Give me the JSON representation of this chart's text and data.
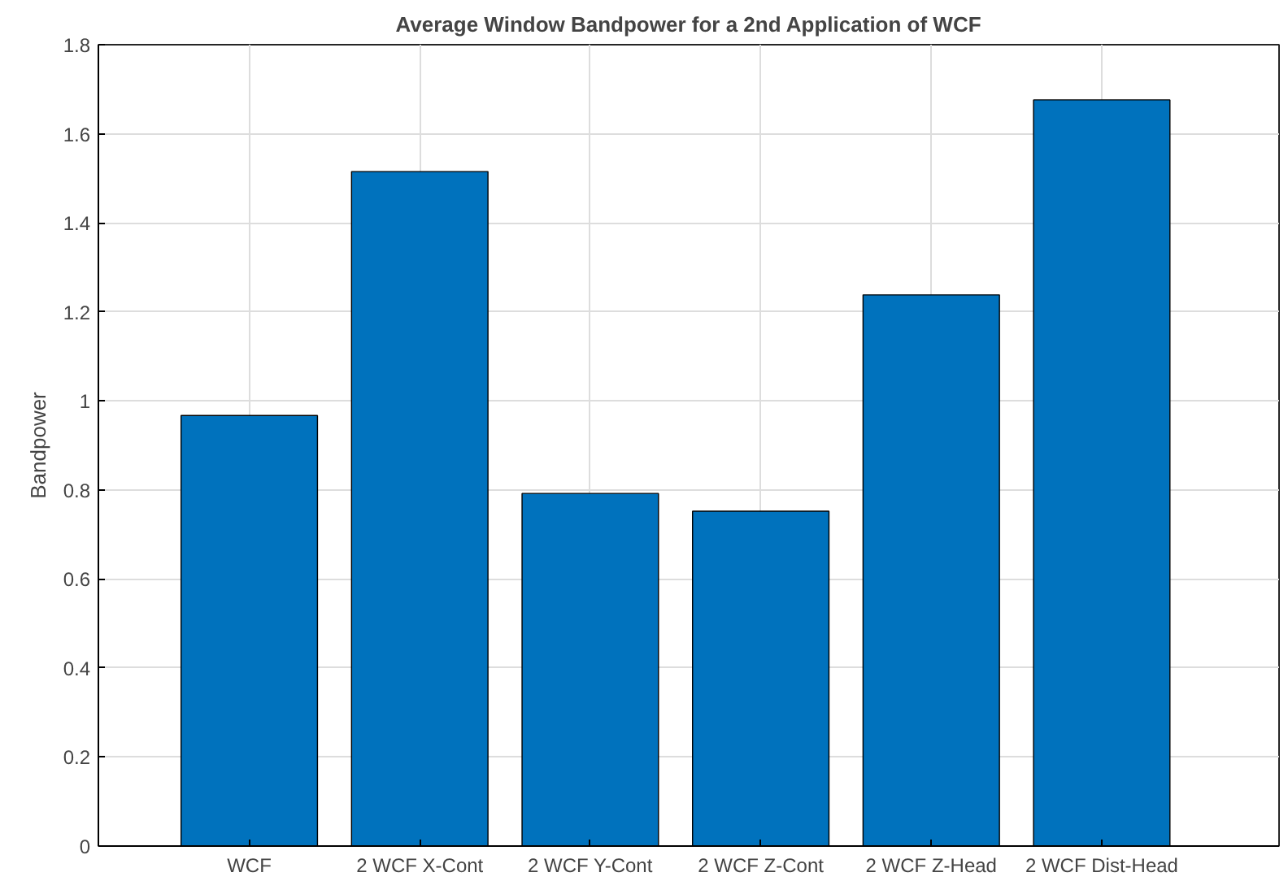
{
  "chart_data": {
    "type": "bar",
    "title": "Average Window Bandpower for a 2nd Application of WCF",
    "ylabel": "Bandpower",
    "categories": [
      "WCF",
      "2 WCF X-Cont",
      "2 WCF Y-Cont",
      "2 WCF Z-Cont",
      "2 WCF Z-Head",
      "2 WCF Dist-Head"
    ],
    "values": [
      0.967,
      1.515,
      0.792,
      0.752,
      1.238,
      1.676
    ],
    "color": "#0072bd",
    "ylim": [
      0,
      1.8
    ],
    "yticks": [
      0,
      0.2,
      0.4,
      0.6,
      0.8,
      1,
      1.2,
      1.4,
      1.6,
      1.8
    ],
    "grid": true
  }
}
